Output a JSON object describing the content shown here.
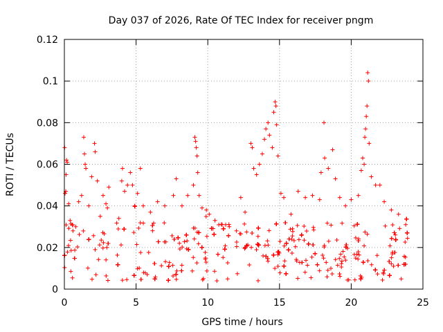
{
  "chart_data": {
    "type": "scatter",
    "title": "Day 037 of 2026, Rate Of TEC Index for receiver pngm",
    "xlabel": "GPS time / hours",
    "ylabel": "ROTI / TECUs",
    "xlim": [
      0,
      25
    ],
    "ylim": [
      0,
      0.12
    ],
    "x_ticks": [
      0,
      5,
      10,
      15,
      20,
      25
    ],
    "x_tick_labels": [
      "0",
      "5",
      "10",
      "15",
      "20",
      "25"
    ],
    "y_ticks": [
      0,
      0.02,
      0.04,
      0.06,
      0.08,
      0.1,
      0.12
    ],
    "y_tick_labels": [
      "0",
      "0.02",
      "0.04",
      "0.06",
      "0.08",
      "0.1",
      "0.12"
    ],
    "grid": true,
    "marker": "plus",
    "color": "#ff0000",
    "series": [
      {
        "name": "ROTI",
        "points": [
          [
            0.02,
            0.068
          ],
          [
            0.05,
            0.046
          ],
          [
            0.1,
            0.047
          ],
          [
            0.15,
            0.062
          ],
          [
            0.2,
            0.061
          ],
          [
            0.12,
            0.055
          ],
          [
            0.3,
            0.041
          ],
          [
            0.4,
            0.033
          ],
          [
            0.6,
            0.028
          ],
          [
            0.8,
            0.03
          ],
          [
            1.0,
            0.042
          ],
          [
            1.2,
            0.045
          ],
          [
            1.35,
            0.073
          ],
          [
            1.4,
            0.065
          ],
          [
            1.45,
            0.06
          ],
          [
            1.5,
            0.058
          ],
          [
            1.7,
            0.04
          ],
          [
            1.9,
            0.054
          ],
          [
            2.1,
            0.07
          ],
          [
            2.15,
            0.066
          ],
          [
            2.3,
            0.052
          ],
          [
            2.5,
            0.035
          ],
          [
            2.7,
            0.045
          ],
          [
            2.9,
            0.041
          ],
          [
            3.0,
            0.039
          ],
          [
            3.1,
            0.049
          ],
          [
            3.8,
            0.034
          ],
          [
            4.0,
            0.052
          ],
          [
            4.05,
            0.058
          ],
          [
            4.2,
            0.047
          ],
          [
            4.4,
            0.05
          ],
          [
            4.6,
            0.056
          ],
          [
            4.75,
            0.05
          ],
          [
            4.9,
            0.04
          ],
          [
            5.1,
            0.046
          ],
          [
            5.3,
            0.058
          ],
          [
            5.5,
            0.04
          ],
          [
            6.0,
            0.037
          ],
          [
            6.5,
            0.042
          ],
          [
            7.0,
            0.04
          ],
          [
            7.6,
            0.045
          ],
          [
            7.8,
            0.053
          ],
          [
            8.2,
            0.04
          ],
          [
            8.6,
            0.045
          ],
          [
            9.0,
            0.05
          ],
          [
            9.1,
            0.073
          ],
          [
            9.15,
            0.071
          ],
          [
            9.2,
            0.068
          ],
          [
            9.25,
            0.064
          ],
          [
            9.3,
            0.056
          ],
          [
            9.4,
            0.045
          ],
          [
            9.6,
            0.039
          ],
          [
            9.9,
            0.038
          ],
          [
            10.1,
            0.036
          ],
          [
            10.5,
            0.033
          ],
          [
            11.0,
            0.031
          ],
          [
            11.5,
            0.03
          ],
          [
            12.0,
            0.028
          ],
          [
            12.3,
            0.044
          ],
          [
            12.6,
            0.037
          ],
          [
            13.0,
            0.07
          ],
          [
            13.1,
            0.068
          ],
          [
            13.2,
            0.058
          ],
          [
            13.4,
            0.055
          ],
          [
            13.6,
            0.06
          ],
          [
            13.8,
            0.065
          ],
          [
            13.95,
            0.072
          ],
          [
            14.05,
            0.077
          ],
          [
            14.2,
            0.08
          ],
          [
            14.3,
            0.074
          ],
          [
            14.5,
            0.068
          ],
          [
            14.6,
            0.085
          ],
          [
            14.7,
            0.09
          ],
          [
            14.75,
            0.088
          ],
          [
            14.8,
            0.079
          ],
          [
            14.9,
            0.064
          ],
          [
            15.1,
            0.046
          ],
          [
            15.3,
            0.044
          ],
          [
            15.8,
            0.036
          ],
          [
            16.3,
            0.047
          ],
          [
            16.8,
            0.044
          ],
          [
            17.3,
            0.045
          ],
          [
            17.8,
            0.043
          ],
          [
            17.9,
            0.056
          ],
          [
            18.1,
            0.08
          ],
          [
            18.15,
            0.063
          ],
          [
            18.4,
            0.058
          ],
          [
            18.7,
            0.067
          ],
          [
            18.9,
            0.053
          ],
          [
            19.2,
            0.044
          ],
          [
            19.6,
            0.04
          ],
          [
            20.0,
            0.043
          ],
          [
            20.5,
            0.045
          ],
          [
            20.7,
            0.057
          ],
          [
            20.8,
            0.063
          ],
          [
            20.9,
            0.06
          ],
          [
            20.95,
            0.073
          ],
          [
            21.0,
            0.077
          ],
          [
            21.05,
            0.083
          ],
          [
            21.1,
            0.088
          ],
          [
            21.15,
            0.104
          ],
          [
            21.2,
            0.1
          ],
          [
            21.25,
            0.07
          ],
          [
            21.4,
            0.054
          ],
          [
            21.7,
            0.05
          ],
          [
            22.0,
            0.05
          ],
          [
            22.3,
            0.042
          ],
          [
            22.8,
            0.038
          ],
          [
            23.3,
            0.036
          ],
          [
            23.8,
            0.031
          ]
        ]
      }
    ],
    "dense_band": {
      "description": "dense cluster of points between ROTI ~0.002 and ~0.035 across all hours, with sparse gaps near 3.3-3.6 h and 11.7-12.0 h",
      "gaps": [
        [
          3.3,
          3.6
        ],
        [
          11.65,
          11.95
        ]
      ]
    }
  }
}
